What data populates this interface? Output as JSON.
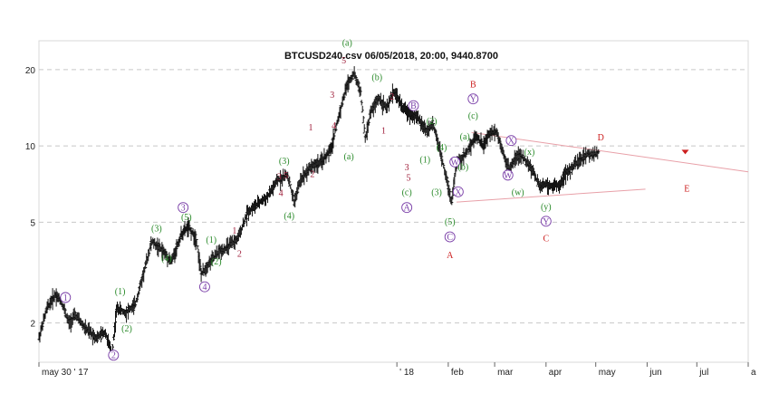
{
  "chart_data": {
    "type": "ohlc",
    "title": "BTCUSD240.csv  06/05/2018, 20:00, 9440.8700",
    "y_scale": "log",
    "y_ticks": [
      2,
      5,
      10,
      20
    ],
    "y_tick_labels": [
      "2",
      "5",
      "10",
      "20"
    ],
    "x_ticks": [
      {
        "label": "may 30 ' 17",
        "day": 0
      },
      {
        "label": "' 18",
        "day": 216
      },
      {
        "label": "feb",
        "day": 247
      },
      {
        "label": "mar",
        "day": 275
      },
      {
        "label": "apr",
        "day": 306
      },
      {
        "label": "may",
        "day": 336
      },
      {
        "label": "jun",
        "day": 367
      },
      {
        "label": "jul",
        "day": 397
      },
      {
        "label": "a",
        "day": 428
      }
    ],
    "xlim": [
      0,
      428
    ],
    "ylim": [
      1.4,
      26
    ],
    "grid": true,
    "price_path": [
      [
        0,
        1.75
      ],
      [
        5,
        2.3
      ],
      [
        10,
        2.6
      ],
      [
        14,
        2.4
      ],
      [
        18,
        2.0
      ],
      [
        22,
        2.15
      ],
      [
        28,
        1.9
      ],
      [
        35,
        1.75
      ],
      [
        40,
        1.85
      ],
      [
        44,
        1.5
      ],
      [
        47,
        2.3
      ],
      [
        52,
        2.2
      ],
      [
        58,
        2.35
      ],
      [
        64,
        3.3
      ],
      [
        68,
        4.2
      ],
      [
        74,
        3.9
      ],
      [
        80,
        3.5
      ],
      [
        86,
        4.5
      ],
      [
        90,
        4.8
      ],
      [
        95,
        4.3
      ],
      [
        98,
        3.1
      ],
      [
        102,
        3.4
      ],
      [
        108,
        3.8
      ],
      [
        114,
        4.0
      ],
      [
        120,
        4.3
      ],
      [
        126,
        5.5
      ],
      [
        132,
        5.9
      ],
      [
        138,
        6.3
      ],
      [
        144,
        7.3
      ],
      [
        150,
        7.7
      ],
      [
        154,
        6.0
      ],
      [
        158,
        7.4
      ],
      [
        164,
        8.3
      ],
      [
        170,
        8.6
      ],
      [
        176,
        9.6
      ],
      [
        182,
        14.0
      ],
      [
        186,
        17.5
      ],
      [
        190,
        19.4
      ],
      [
        194,
        16.5
      ],
      [
        197,
        10.6
      ],
      [
        200,
        13.5
      ],
      [
        205,
        15.5
      ],
      [
        210,
        14.0
      ],
      [
        214,
        16.5
      ],
      [
        220,
        14.0
      ],
      [
        228,
        13.0
      ],
      [
        234,
        11.5
      ],
      [
        238,
        12.2
      ],
      [
        242,
        9.5
      ],
      [
        246,
        7.5
      ],
      [
        249,
        6.0
      ],
      [
        252,
        8.6
      ],
      [
        256,
        9.0
      ],
      [
        260,
        10.0
      ],
      [
        264,
        11.0
      ],
      [
        268,
        10.0
      ],
      [
        272,
        11.2
      ],
      [
        276,
        11.5
      ],
      [
        280,
        9.5
      ],
      [
        284,
        8.0
      ],
      [
        288,
        9.2
      ],
      [
        292,
        9.0
      ],
      [
        298,
        8.0
      ],
      [
        302,
        6.9
      ],
      [
        306,
        7.1
      ],
      [
        310,
        6.9
      ],
      [
        314,
        7.0
      ],
      [
        318,
        7.8
      ],
      [
        324,
        8.5
      ],
      [
        330,
        9.2
      ],
      [
        336,
        9.3
      ],
      [
        338,
        9.44
      ]
    ],
    "wave_labels": [
      {
        "text": "1",
        "day": 16,
        "price": 2.45,
        "color": "#7a3fa8",
        "circled": true
      },
      {
        "text": "2",
        "day": 45,
        "price": 1.45,
        "color": "#7a3fa8",
        "circled": true
      },
      {
        "text": "3",
        "day": 87,
        "price": 5.55,
        "color": "#7a3fa8",
        "circled": true
      },
      {
        "text": "4",
        "day": 100,
        "price": 2.7,
        "color": "#7a3fa8",
        "circled": true
      },
      {
        "text": "(1)",
        "day": 49,
        "price": 2.6,
        "color": "#2a8a2a"
      },
      {
        "text": "(2)",
        "day": 53,
        "price": 1.85,
        "color": "#2a8a2a"
      },
      {
        "text": "(3)",
        "day": 71,
        "price": 4.6,
        "color": "#2a8a2a"
      },
      {
        "text": "(4)",
        "day": 77,
        "price": 3.5,
        "color": "#2a8a2a"
      },
      {
        "text": "(5)",
        "day": 89,
        "price": 5.1,
        "color": "#2a8a2a"
      },
      {
        "text": "(1)",
        "day": 104,
        "price": 4.15,
        "color": "#2a8a2a"
      },
      {
        "text": "(2)",
        "day": 107,
        "price": 3.4,
        "color": "#2a8a2a"
      },
      {
        "text": "(3)",
        "day": 148,
        "price": 8.5,
        "color": "#2a8a2a"
      },
      {
        "text": "(4)",
        "day": 151,
        "price": 5.15,
        "color": "#2a8a2a"
      },
      {
        "text": "1",
        "day": 118,
        "price": 4.5,
        "color": "#a0203c"
      },
      {
        "text": "2",
        "day": 121,
        "price": 3.65,
        "color": "#a0203c"
      },
      {
        "text": "3",
        "day": 145,
        "price": 7.35,
        "color": "#a0203c"
      },
      {
        "text": "4",
        "day": 146,
        "price": 6.35,
        "color": "#a0203c"
      },
      {
        "text": "5",
        "day": 149,
        "price": 7.45,
        "color": "#a0203c"
      },
      {
        "text": "1",
        "day": 164,
        "price": 11.5,
        "color": "#a0203c"
      },
      {
        "text": "2",
        "day": 165,
        "price": 7.55,
        "color": "#a0203c"
      },
      {
        "text": "3",
        "day": 177,
        "price": 15.5,
        "color": "#a0203c"
      },
      {
        "text": "4",
        "day": 178,
        "price": 11.7,
        "color": "#a0203c"
      },
      {
        "text": "5",
        "day": 184,
        "price": 21.2,
        "color": "#a0203c"
      },
      {
        "text": "(a)",
        "day": 186,
        "price": 24.8,
        "color": "#2a8a2a"
      },
      {
        "text": "(a)",
        "day": 187,
        "price": 8.85,
        "color": "#2a8a2a"
      },
      {
        "text": "(b)",
        "day": 204,
        "price": 18.2,
        "color": "#2a8a2a"
      },
      {
        "text": "(c)",
        "day": 222,
        "price": 6.4,
        "color": "#2a8a2a"
      },
      {
        "text": "1",
        "day": 208,
        "price": 11.2,
        "color": "#a0203c"
      },
      {
        "text": "2",
        "day": 213,
        "price": 15.2,
        "color": "#a0203c"
      },
      {
        "text": "3",
        "day": 222,
        "price": 8.0,
        "color": "#a0203c"
      },
      {
        "text": "5",
        "day": 223,
        "price": 7.3,
        "color": "#a0203c"
      },
      {
        "text": "A",
        "day": 222,
        "price": 5.55,
        "color": "#7a3fa8",
        "circled": true
      },
      {
        "text": "B",
        "day": 226,
        "price": 14.0,
        "color": "#7a3fa8",
        "circled": true
      },
      {
        "text": "(1)",
        "day": 233,
        "price": 8.6,
        "color": "#2a8a2a"
      },
      {
        "text": "(2)",
        "day": 237,
        "price": 12.2,
        "color": "#2a8a2a"
      },
      {
        "text": "(3)",
        "day": 240,
        "price": 6.4,
        "color": "#2a8a2a"
      },
      {
        "text": "(4)",
        "day": 243,
        "price": 9.6,
        "color": "#2a8a2a"
      },
      {
        "text": "(5)",
        "day": 248,
        "price": 4.9,
        "color": "#2a8a2a"
      },
      {
        "text": "C",
        "day": 248,
        "price": 4.25,
        "color": "#7a3fa8",
        "circled": true
      },
      {
        "text": "A",
        "day": 248,
        "price": 3.6,
        "color": "#cc1f1f"
      },
      {
        "text": "W",
        "day": 251,
        "price": 8.4,
        "color": "#7a3fa8",
        "circled": true
      },
      {
        "text": "X",
        "day": 253,
        "price": 6.4,
        "color": "#7a3fa8",
        "circled": true
      },
      {
        "text": "(b)",
        "day": 256,
        "price": 8.05,
        "color": "#2a8a2a"
      },
      {
        "text": "(a)",
        "day": 257,
        "price": 10.6,
        "color": "#2a8a2a"
      },
      {
        "text": "(c)",
        "day": 262,
        "price": 12.8,
        "color": "#2a8a2a"
      },
      {
        "text": "Y",
        "day": 262,
        "price": 14.9,
        "color": "#7a3fa8",
        "circled": true
      },
      {
        "text": "B",
        "day": 262,
        "price": 17.0,
        "color": "#cc1f1f"
      },
      {
        "text": "X",
        "day": 285,
        "price": 10.2,
        "color": "#7a3fa8",
        "circled": true
      },
      {
        "text": "W",
        "day": 283,
        "price": 7.45,
        "color": "#7a3fa8",
        "circled": true
      },
      {
        "text": "(x)",
        "day": 296,
        "price": 9.2,
        "color": "#2a8a2a"
      },
      {
        "text": "(w)",
        "day": 289,
        "price": 6.4,
        "color": "#2a8a2a"
      },
      {
        "text": "(y)",
        "day": 306,
        "price": 5.6,
        "color": "#2a8a2a"
      },
      {
        "text": "Y",
        "day": 306,
        "price": 4.9,
        "color": "#7a3fa8",
        "circled": true
      },
      {
        "text": "C",
        "day": 306,
        "price": 4.2,
        "color": "#cc1f1f"
      },
      {
        "text": "D",
        "day": 339,
        "price": 10.5,
        "color": "#cc1f1f"
      },
      {
        "text": "E",
        "day": 391,
        "price": 6.6,
        "color": "#cc1f1f"
      }
    ],
    "trendlines": [
      {
        "from": [
          261,
          11.3
        ],
        "to": [
          428,
          7.9
        ],
        "color": "#e8a0a8"
      },
      {
        "from": [
          252,
          6.0
        ],
        "to": [
          366,
          6.75
        ],
        "color": "#e8a0a8"
      }
    ],
    "markers": [
      {
        "shape": "triangle-down",
        "day": 390,
        "price": 9.5,
        "color": "#cc1f1f"
      }
    ]
  }
}
